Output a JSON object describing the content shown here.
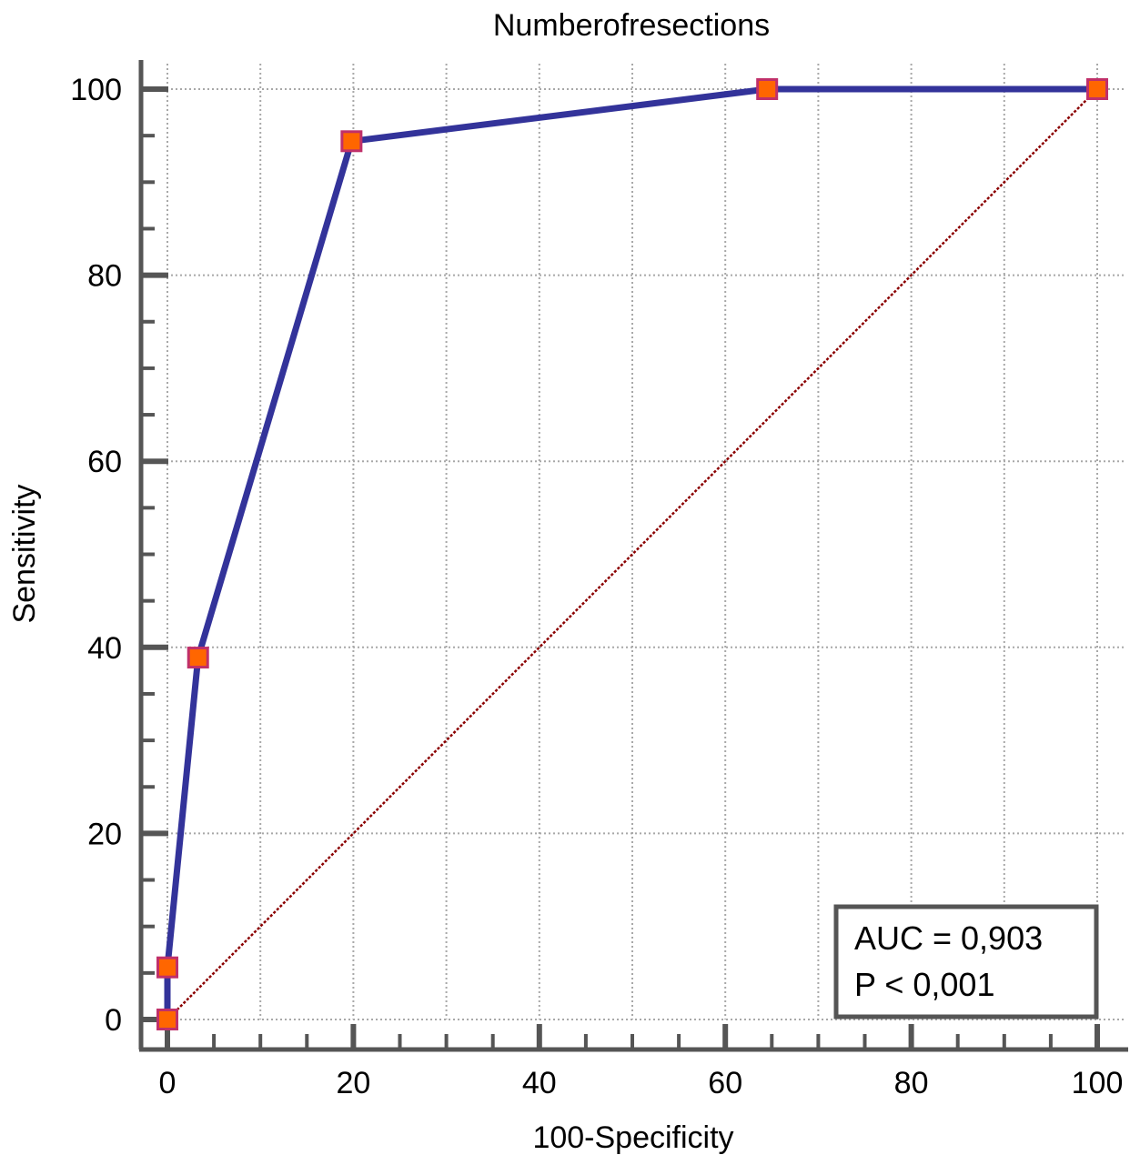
{
  "chart_data": {
    "type": "line",
    "title": "Numberofresections",
    "xlabel": "100-Specificity",
    "ylabel": "Sensitivity",
    "xlim": [
      0,
      100
    ],
    "ylim": [
      0,
      100
    ],
    "x_ticks": [
      "0",
      "20",
      "40",
      "60",
      "80",
      "100"
    ],
    "y_ticks": [
      "0",
      "20",
      "40",
      "60",
      "80",
      "100"
    ],
    "grid": true,
    "series": [
      {
        "points": [
          {
            "x": 0,
            "y": 0
          },
          {
            "x": 0,
            "y": 5.6
          },
          {
            "x": 3.3,
            "y": 38.9
          },
          {
            "x": 19.8,
            "y": 94.4
          },
          {
            "x": 64.5,
            "y": 100
          },
          {
            "x": 100,
            "y": 100
          }
        ],
        "color": "#33339a",
        "marker_fill": "#ff6600",
        "marker_edge": "#c0306a"
      }
    ],
    "reference_line": {
      "points": [
        {
          "x": 0,
          "y": 0
        },
        {
          "x": 100,
          "y": 100
        }
      ],
      "color": "#8b0000"
    },
    "annotation": {
      "lines": [
        "AUC = 0,903",
        "P < 0,001"
      ],
      "position": "bottom-right"
    }
  }
}
